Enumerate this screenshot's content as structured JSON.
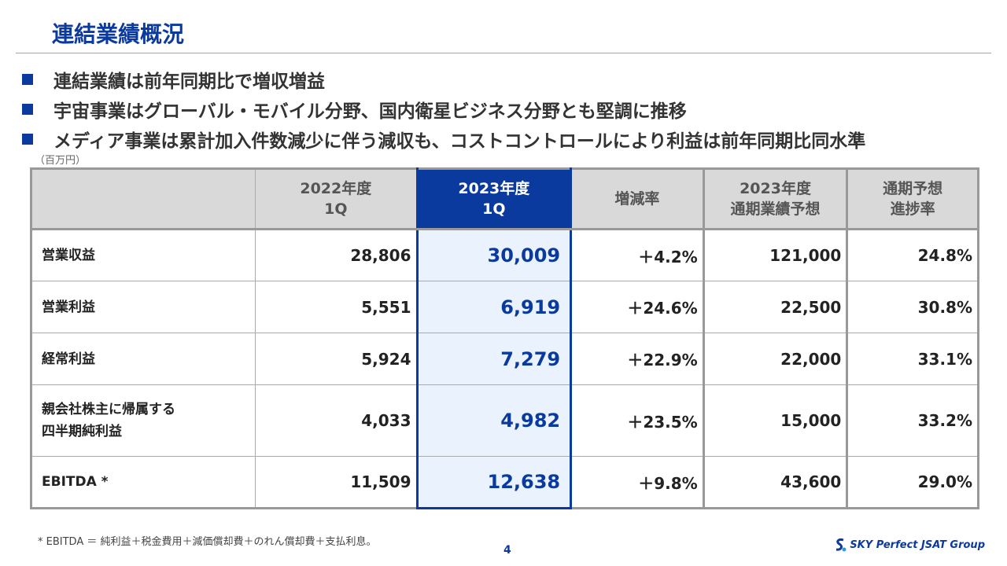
{
  "title": "連結業績概況",
  "bullets": [
    "連結業績は前年同期比で増収増益",
    "宇宙事業はグローバル・モバイル分野、国内衛星ビジネス分野とも堅調に推移",
    "メディア事業は累計加入件数減少に伴う減収も、コストコントロールにより利益は前年同期比同水準"
  ],
  "unit": "（百万円）",
  "headers": [
    [
      "",
      ""
    ],
    [
      "2022年度",
      "1Q"
    ],
    [
      "2023年度",
      "1Q"
    ],
    [
      "増減率",
      ""
    ],
    [
      "2023年度",
      "通期業績予想"
    ],
    [
      "通期予想",
      "進捗率"
    ]
  ],
  "rows": [
    {
      "label": [
        "営業収益",
        ""
      ],
      "v": [
        "28,806",
        "30,009",
        "＋4.2%",
        "121,000",
        "24.8%"
      ]
    },
    {
      "label": [
        "営業利益",
        ""
      ],
      "v": [
        "5,551",
        "6,919",
        "＋24.6%",
        "22,500",
        "30.8%"
      ]
    },
    {
      "label": [
        "経常利益",
        ""
      ],
      "v": [
        "5,924",
        "7,279",
        "＋22.9%",
        "22,000",
        "33.1%"
      ]
    },
    {
      "label": [
        "親会社株主に帰属する",
        "四半期純利益"
      ],
      "v": [
        "4,033",
        "4,982",
        "＋23.5%",
        "15,000",
        "33.2%"
      ]
    },
    {
      "label": [
        "EBITDA *",
        ""
      ],
      "v": [
        "11,509",
        "12,638",
        "＋9.8%",
        "43,600",
        "29.0%"
      ]
    }
  ],
  "footnote": "* EBITDA ＝ 純利益＋税金費用＋減価償却費＋のれん償却費＋支払利息。",
  "page": "4",
  "logo": "SKY Perfect JSAT Group"
}
